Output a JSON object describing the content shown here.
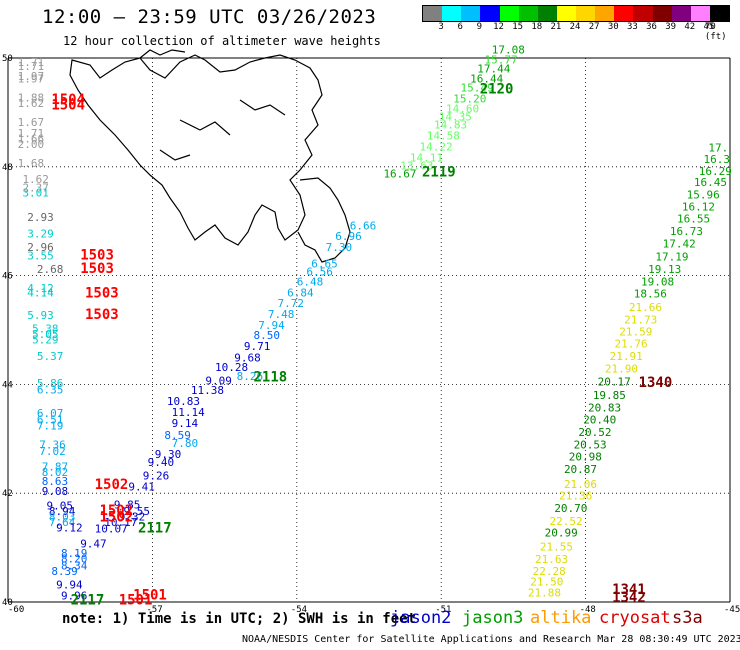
{
  "header": {
    "title": "12:00 – 23:59 UTC 03/26/2023",
    "subtitle": "12 hour collection of altimeter wave heights"
  },
  "color_scale": {
    "labels": [
      "3",
      "6",
      "9",
      "12",
      "15",
      "18",
      "21",
      "24",
      "27",
      "30",
      "33",
      "36",
      "39",
      "42",
      "45",
      "70 (ft)"
    ],
    "colors": [
      "#808080",
      "#00ffff",
      "#00bfff",
      "#0000ff",
      "#00ff00",
      "#00c000",
      "#008000",
      "#ffff00",
      "#ffd700",
      "#ffa500",
      "#ff0000",
      "#c00000",
      "#800000",
      "#800080",
      "#ff80ff",
      "#000000"
    ]
  },
  "axes": {
    "lon_labels": [
      "-60",
      "-57",
      "-54",
      "-51",
      "-48",
      "-45"
    ],
    "lat_labels": [
      "40",
      "42",
      "44",
      "46",
      "48",
      "50"
    ]
  },
  "footer": {
    "note": "note: 1) Time is in UTC; 2) SWH is in feet",
    "credit": "NOAA/NESDIS Center for Satellite Applications and Research   Mar 28 08:30:49 UTC 2023",
    "satellites": [
      {
        "name": "jason2",
        "color": "#0000cc"
      },
      {
        "name": "jason3",
        "color": "#00a000"
      },
      {
        "name": "altika",
        "color": "#ff9900"
      },
      {
        "name": "cryosat",
        "color": "#dd0000"
      },
      {
        "name": "s3a",
        "color": "#800000"
      }
    ]
  },
  "wave_labels": [
    {
      "t": "1.71",
      "lon": -59.8,
      "lat": 49.85,
      "c": "#999999"
    },
    {
      "t": "1.71",
      "lon": -59.8,
      "lat": 49.78,
      "c": "#999999"
    },
    {
      "t": "1.97",
      "lon": -59.8,
      "lat": 49.6,
      "c": "#999999"
    },
    {
      "t": "1.97",
      "lon": -59.8,
      "lat": 49.55,
      "c": "#999999"
    },
    {
      "t": "1.88",
      "lon": -59.8,
      "lat": 49.2,
      "c": "#999999"
    },
    {
      "t": "1.62",
      "lon": -59.8,
      "lat": 49.1,
      "c": "#999999"
    },
    {
      "t": "1.67",
      "lon": -59.8,
      "lat": 48.75,
      "c": "#999999"
    },
    {
      "t": "1.71",
      "lon": -59.8,
      "lat": 48.55,
      "c": "#999999"
    },
    {
      "t": "1.66",
      "lon": -59.8,
      "lat": 48.45,
      "c": "#999999"
    },
    {
      "t": "2.00",
      "lon": -59.8,
      "lat": 48.35,
      "c": "#999999"
    },
    {
      "t": "1.68",
      "lon": -59.8,
      "lat": 48.0,
      "c": "#999999"
    },
    {
      "t": "1.62",
      "lon": -59.7,
      "lat": 47.7,
      "c": "#999999"
    },
    {
      "t": "2.37",
      "lon": -59.7,
      "lat": 47.55,
      "c": "#999999"
    },
    {
      "t": "3.01",
      "lon": -59.7,
      "lat": 47.45,
      "c": "#00cccc"
    },
    {
      "t": "2.93",
      "lon": -59.6,
      "lat": 47.0,
      "c": "#666666"
    },
    {
      "t": "3.29",
      "lon": -59.6,
      "lat": 46.7,
      "c": "#00cccc"
    },
    {
      "t": "2.96",
      "lon": -59.6,
      "lat": 46.45,
      "c": "#666666"
    },
    {
      "t": "3.55",
      "lon": -59.6,
      "lat": 46.3,
      "c": "#00cccc"
    },
    {
      "t": "2.68",
      "lon": -59.4,
      "lat": 46.05,
      "c": "#666666"
    },
    {
      "t": "4.12",
      "lon": -59.6,
      "lat": 45.7,
      "c": "#00cccc"
    },
    {
      "t": "4.14",
      "lon": -59.6,
      "lat": 45.62,
      "c": "#00cccc"
    },
    {
      "t": "5.93",
      "lon": -59.6,
      "lat": 45.2,
      "c": "#00cccc"
    },
    {
      "t": "5.38",
      "lon": -59.5,
      "lat": 44.95,
      "c": "#00cccc"
    },
    {
      "t": "5.05",
      "lon": -59.5,
      "lat": 44.85,
      "c": "#00cccc"
    },
    {
      "t": "5.29",
      "lon": -59.5,
      "lat": 44.75,
      "c": "#00cccc"
    },
    {
      "t": "5.37",
      "lon": -59.4,
      "lat": 44.45,
      "c": "#00cccc"
    },
    {
      "t": "5.86",
      "lon": -59.4,
      "lat": 43.95,
      "c": "#00cccc"
    },
    {
      "t": "6.35",
      "lon": -59.4,
      "lat": 43.83,
      "c": "#00aaee"
    },
    {
      "t": "6.07",
      "lon": -59.4,
      "lat": 43.4,
      "c": "#00aaee"
    },
    {
      "t": "6.51",
      "lon": -59.4,
      "lat": 43.28,
      "c": "#00aaee"
    },
    {
      "t": "7.19",
      "lon": -59.4,
      "lat": 43.17,
      "c": "#00aaee"
    },
    {
      "t": "7.36",
      "lon": -59.35,
      "lat": 42.82,
      "c": "#00aaee"
    },
    {
      "t": "7.02",
      "lon": -59.35,
      "lat": 42.7,
      "c": "#00aaee"
    },
    {
      "t": "7.87",
      "lon": -59.3,
      "lat": 42.42,
      "c": "#00aaee"
    },
    {
      "t": "8.02",
      "lon": -59.3,
      "lat": 42.32,
      "c": "#00aaee"
    },
    {
      "t": "8.63",
      "lon": -59.3,
      "lat": 42.15,
      "c": "#0066ff"
    },
    {
      "t": "9.08",
      "lon": -59.3,
      "lat": 41.97,
      "c": "#0000cc"
    },
    {
      "t": "9.05",
      "lon": -59.2,
      "lat": 41.7,
      "c": "#0000cc"
    },
    {
      "t": "8.94",
      "lon": -59.15,
      "lat": 41.6,
      "c": "#0000cc"
    },
    {
      "t": "8.03",
      "lon": -59.15,
      "lat": 41.5,
      "c": "#00aaee"
    },
    {
      "t": "7.64",
      "lon": -59.15,
      "lat": 41.4,
      "c": "#00aaee"
    },
    {
      "t": "9.12",
      "lon": -59.0,
      "lat": 41.3,
      "c": "#0000cc"
    },
    {
      "t": "8.19",
      "lon": -58.9,
      "lat": 40.83,
      "c": "#0066ff"
    },
    {
      "t": "8.20",
      "lon": -58.9,
      "lat": 40.73,
      "c": "#0066ff"
    },
    {
      "t": "8.34",
      "lon": -58.9,
      "lat": 40.6,
      "c": "#0066ff"
    },
    {
      "t": "8.39",
      "lon": -59.1,
      "lat": 40.5,
      "c": "#0066ff"
    },
    {
      "t": "9.94",
      "lon": -59.0,
      "lat": 40.25,
      "c": "#0000cc"
    },
    {
      "t": "9.96",
      "lon": -58.9,
      "lat": 40.05,
      "c": "#0000cc"
    },
    {
      "t": "10.07",
      "lon": -58.2,
      "lat": 41.28,
      "c": "#0000cc"
    },
    {
      "t": "10.17",
      "lon": -58.0,
      "lat": 41.4,
      "c": "#0000cc"
    },
    {
      "t": "9.47",
      "lon": -58.5,
      "lat": 41.0,
      "c": "#0000cc"
    },
    {
      "t": "9.32",
      "lon": -57.7,
      "lat": 41.5,
      "c": "#0000cc"
    },
    {
      "t": "9.55",
      "lon": -57.6,
      "lat": 41.6,
      "c": "#0000cc"
    },
    {
      "t": "9.85",
      "lon": -57.8,
      "lat": 41.72,
      "c": "#0000cc"
    },
    {
      "t": "9.41",
      "lon": -57.5,
      "lat": 42.05,
      "c": "#0000cc"
    },
    {
      "t": "9.26",
      "lon": -57.2,
      "lat": 42.25,
      "c": "#0000cc"
    },
    {
      "t": "9.40",
      "lon": -57.1,
      "lat": 42.5,
      "c": "#0000cc"
    },
    {
      "t": "9.30",
      "lon": -56.95,
      "lat": 42.65,
      "c": "#0000cc"
    },
    {
      "t": "7.80",
      "lon": -56.6,
      "lat": 42.85,
      "c": "#00aaee"
    },
    {
      "t": "8.59",
      "lon": -56.75,
      "lat": 43.0,
      "c": "#0066ff"
    },
    {
      "t": "9.14",
      "lon": -56.6,
      "lat": 43.22,
      "c": "#0000cc"
    },
    {
      "t": "11.14",
      "lon": -56.6,
      "lat": 43.42,
      "c": "#0000cc"
    },
    {
      "t": "10.83",
      "lon": -56.7,
      "lat": 43.62,
      "c": "#0000cc"
    },
    {
      "t": "11.38",
      "lon": -56.2,
      "lat": 43.82,
      "c": "#0000cc"
    },
    {
      "t": "9.09",
      "lon": -55.9,
      "lat": 44.0,
      "c": "#0000cc"
    },
    {
      "t": "10.28",
      "lon": -55.7,
      "lat": 44.25,
      "c": "#0000cc"
    },
    {
      "t": "8.26",
      "lon": -55.25,
      "lat": 44.08,
      "c": "#00aaee"
    },
    {
      "t": "9.68",
      "lon": -55.3,
      "lat": 44.42,
      "c": "#0000cc"
    },
    {
      "t": "9.71",
      "lon": -55.1,
      "lat": 44.63,
      "c": "#0000cc"
    },
    {
      "t": "8.50",
      "lon": -54.9,
      "lat": 44.83,
      "c": "#0066ff"
    },
    {
      "t": "7.94",
      "lon": -54.8,
      "lat": 45.02,
      "c": "#00aaee"
    },
    {
      "t": "7.48",
      "lon": -54.6,
      "lat": 45.22,
      "c": "#00aaee"
    },
    {
      "t": "7.72",
      "lon": -54.4,
      "lat": 45.42,
      "c": "#00aaee"
    },
    {
      "t": "6.84",
      "lon": -54.2,
      "lat": 45.62,
      "c": "#00aaee"
    },
    {
      "t": "6.48",
      "lon": -54.0,
      "lat": 45.82,
      "c": "#00aaee"
    },
    {
      "t": "6.56",
      "lon": -53.8,
      "lat": 46.0,
      "c": "#00aaee"
    },
    {
      "t": "6.65",
      "lon": -53.7,
      "lat": 46.15,
      "c": "#00aaee"
    },
    {
      "t": "7.30",
      "lon": -53.4,
      "lat": 46.45,
      "c": "#00aaee"
    },
    {
      "t": "6.96",
      "lon": -53.2,
      "lat": 46.65,
      "c": "#00aaee"
    },
    {
      "t": "6.66",
      "lon": -52.9,
      "lat": 46.85,
      "c": "#00aaee"
    },
    {
      "t": "16.67",
      "lon": -52.2,
      "lat": 47.8,
      "c": "#00a000"
    },
    {
      "t": "13.63",
      "lon": -51.85,
      "lat": 47.95,
      "c": "#66ff66"
    },
    {
      "t": "14.11",
      "lon": -51.65,
      "lat": 48.1,
      "c": "#66ff66"
    },
    {
      "t": "14.22",
      "lon": -51.45,
      "lat": 48.3,
      "c": "#66ff66"
    },
    {
      "t": "14.58",
      "lon": -51.3,
      "lat": 48.5,
      "c": "#66ff66"
    },
    {
      "t": "14.83",
      "lon": -51.15,
      "lat": 48.7,
      "c": "#66ff66"
    },
    {
      "t": "14.35",
      "lon": -51.05,
      "lat": 48.85,
      "c": "#66ff66"
    },
    {
      "t": "14.60",
      "lon": -50.9,
      "lat": 49.0,
      "c": "#66ff66"
    },
    {
      "t": "15.20",
      "lon": -50.75,
      "lat": 49.18,
      "c": "#33dd33"
    },
    {
      "t": "15.49",
      "lon": -50.6,
      "lat": 49.38,
      "c": "#33dd33"
    },
    {
      "t": "16.44",
      "lon": -50.4,
      "lat": 49.55,
      "c": "#00a000"
    },
    {
      "t": "17.44",
      "lon": -50.25,
      "lat": 49.73,
      "c": "#00a000"
    },
    {
      "t": "15.77",
      "lon": -50.1,
      "lat": 49.9,
      "c": "#33dd33"
    },
    {
      "t": "17.08",
      "lon": -49.95,
      "lat": 50.08,
      "c": "#00a000"
    },
    {
      "t": "17.",
      "lon": -45.45,
      "lat": 48.28,
      "c": "#00a000"
    },
    {
      "t": "16.3",
      "lon": -45.55,
      "lat": 48.07,
      "c": "#00a000"
    },
    {
      "t": "16.29",
      "lon": -45.65,
      "lat": 47.85,
      "c": "#00a000"
    },
    {
      "t": "16.45",
      "lon": -45.75,
      "lat": 47.65,
      "c": "#00a000"
    },
    {
      "t": "15.96",
      "lon": -45.9,
      "lat": 47.42,
      "c": "#00a000"
    },
    {
      "t": "16.12",
      "lon": -46.0,
      "lat": 47.2,
      "c": "#00a000"
    },
    {
      "t": "16.55",
      "lon": -46.1,
      "lat": 46.98,
      "c": "#00a000"
    },
    {
      "t": "16.73",
      "lon": -46.25,
      "lat": 46.75,
      "c": "#00a000"
    },
    {
      "t": "17.42",
      "lon": -46.4,
      "lat": 46.52,
      "c": "#00a000"
    },
    {
      "t": "17.19",
      "lon": -46.55,
      "lat": 46.28,
      "c": "#00a000"
    },
    {
      "t": "19.13",
      "lon": -46.7,
      "lat": 46.05,
      "c": "#00a000"
    },
    {
      "t": "19.08",
      "lon": -46.85,
      "lat": 45.82,
      "c": "#00a000"
    },
    {
      "t": "18.56",
      "lon": -47.0,
      "lat": 45.6,
      "c": "#00a000"
    },
    {
      "t": "21.66",
      "lon": -47.1,
      "lat": 45.35,
      "c": "#dddd00"
    },
    {
      "t": "21.73",
      "lon": -47.2,
      "lat": 45.12,
      "c": "#dddd00"
    },
    {
      "t": "21.59",
      "lon": -47.3,
      "lat": 44.9,
      "c": "#dddd00"
    },
    {
      "t": "21.76",
      "lon": -47.4,
      "lat": 44.68,
      "c": "#dddd00"
    },
    {
      "t": "21.91",
      "lon": -47.5,
      "lat": 44.45,
      "c": "#dddd00"
    },
    {
      "t": "21.90",
      "lon": -47.6,
      "lat": 44.22,
      "c": "#dddd00"
    },
    {
      "t": "20.17",
      "lon": -47.75,
      "lat": 43.98,
      "c": "#008000"
    },
    {
      "t": "19.85",
      "lon": -47.85,
      "lat": 43.73,
      "c": "#008000"
    },
    {
      "t": "20.83",
      "lon": -47.95,
      "lat": 43.5,
      "c": "#008000"
    },
    {
      "t": "20.40",
      "lon": -48.05,
      "lat": 43.28,
      "c": "#008000"
    },
    {
      "t": "20.52",
      "lon": -48.15,
      "lat": 43.05,
      "c": "#008000"
    },
    {
      "t": "20.53",
      "lon": -48.25,
      "lat": 42.82,
      "c": "#008000"
    },
    {
      "t": "20.98",
      "lon": -48.35,
      "lat": 42.6,
      "c": "#008000"
    },
    {
      "t": "20.87",
      "lon": -48.45,
      "lat": 42.37,
      "c": "#008000"
    },
    {
      "t": "21.06",
      "lon": -48.45,
      "lat": 42.1,
      "c": "#dddd00"
    },
    {
      "t": "21.36",
      "lon": -48.55,
      "lat": 41.88,
      "c": "#dddd00"
    },
    {
      "t": "20.70",
      "lon": -48.65,
      "lat": 41.65,
      "c": "#008000"
    },
    {
      "t": "22.52",
      "lon": -48.75,
      "lat": 41.42,
      "c": "#dddd00"
    },
    {
      "t": "20.99",
      "lon": -48.85,
      "lat": 41.2,
      "c": "#008000"
    },
    {
      "t": "21.55",
      "lon": -48.95,
      "lat": 40.95,
      "c": "#dddd00"
    },
    {
      "t": "21.63",
      "lon": -49.05,
      "lat": 40.72,
      "c": "#dddd00"
    },
    {
      "t": "22.28",
      "lon": -49.1,
      "lat": 40.5,
      "c": "#dddd00"
    },
    {
      "t": "21.50",
      "lon": -49.15,
      "lat": 40.3,
      "c": "#dddd00"
    },
    {
      "t": "21.88",
      "lon": -49.2,
      "lat": 40.1,
      "c": "#dddd00"
    }
  ],
  "pass_labels": [
    {
      "t": "1504",
      "lon": -59.1,
      "lat": 49.15,
      "c": "#ff0000"
    },
    {
      "t": "1504",
      "lon": -59.1,
      "lat": 49.05,
      "c": "#ff0000"
    },
    {
      "t": "1503",
      "lon": -58.5,
      "lat": 46.3,
      "c": "#ff0000"
    },
    {
      "t": "1503",
      "lon": -58.5,
      "lat": 46.05,
      "c": "#ff0000"
    },
    {
      "t": "1503",
      "lon": -58.4,
      "lat": 45.6,
      "c": "#ff0000"
    },
    {
      "t": "1503",
      "lon": -58.4,
      "lat": 45.2,
      "c": "#ff0000"
    },
    {
      "t": "1502",
      "lon": -58.2,
      "lat": 42.08,
      "c": "#ff0000"
    },
    {
      "t": "1502",
      "lon": -58.1,
      "lat": 41.6,
      "c": "#ff0000"
    },
    {
      "t": "1502",
      "lon": -58.1,
      "lat": 41.48,
      "c": "#ff0000"
    },
    {
      "t": "1501",
      "lon": -57.4,
      "lat": 40.05,
      "c": "#ff0000"
    },
    {
      "t": "1501",
      "lon": -57.7,
      "lat": 39.95,
      "c": "#ff0000"
    },
    {
      "t": "2120",
      "lon": -50.2,
      "lat": 49.35,
      "c": "#008000"
    },
    {
      "t": "2119",
      "lon": -51.4,
      "lat": 47.82,
      "c": "#008000"
    },
    {
      "t": "2118",
      "lon": -54.9,
      "lat": 44.05,
      "c": "#008000"
    },
    {
      "t": "2117",
      "lon": -57.3,
      "lat": 41.28,
      "c": "#008000"
    },
    {
      "t": "2117",
      "lon": -58.7,
      "lat": 39.95,
      "c": "#008000"
    },
    {
      "t": "1340",
      "lon": -46.9,
      "lat": 43.95,
      "c": "#800000"
    },
    {
      "t": "1341",
      "lon": -47.45,
      "lat": 40.15,
      "c": "#800000"
    },
    {
      "t": "1342",
      "lon": -47.45,
      "lat": 40.0,
      "c": "#800000"
    }
  ]
}
